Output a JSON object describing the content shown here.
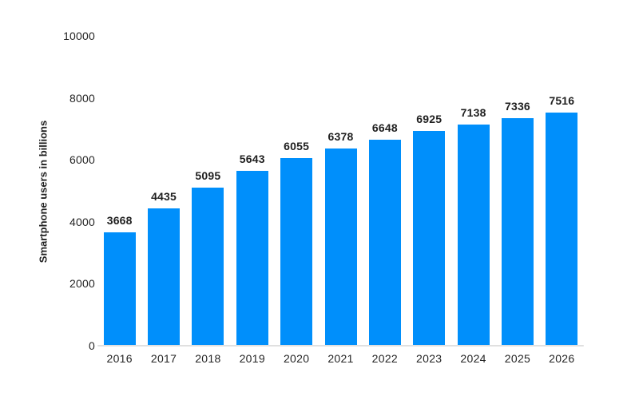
{
  "chart_data": {
    "type": "bar",
    "title": "",
    "categories": [
      "2016",
      "2017",
      "2018",
      "2019",
      "2020",
      "2021",
      "2022",
      "2023",
      "2024",
      "2025",
      "2026"
    ],
    "series": [
      {
        "name": "Smartphone users",
        "values": [
          3668,
          4435,
          5095,
          5643,
          6055,
          6378,
          6648,
          6925,
          7138,
          7336,
          7516
        ]
      }
    ],
    "data_labels": [
      "3668",
      "4435",
      "5095",
      "5643",
      "6055",
      "6378",
      "6648",
      "6925",
      "7138",
      "7336",
      "7516"
    ],
    "xlabel": "",
    "ylabel": "Smartphone users in billions",
    "ylim": [
      0,
      10000
    ],
    "yticks": [
      0,
      2000,
      4000,
      6000,
      8000,
      10000
    ],
    "grid": false,
    "legend_position": "none",
    "colors": {
      "bar": "#008FFB",
      "text": "#242424",
      "axis_line": "#e0e0e0",
      "background": "#ffffff"
    }
  }
}
